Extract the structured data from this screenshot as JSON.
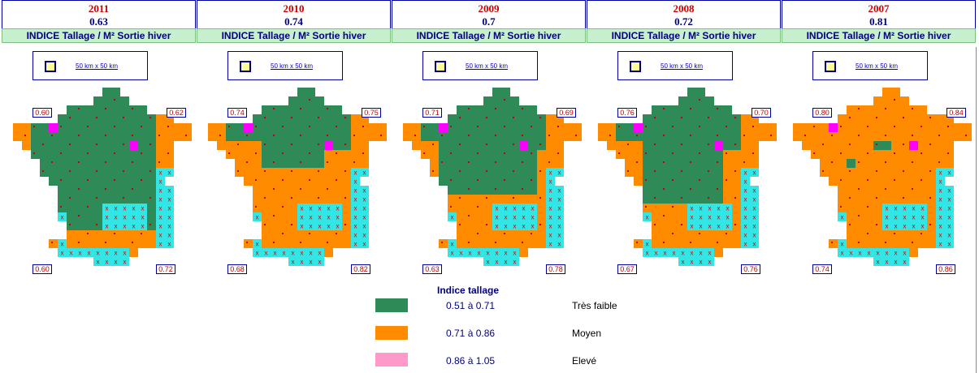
{
  "panels": [
    {
      "year": "2011",
      "mean": "0.63",
      "title": "INDICE Tallage / M² Sortie hiver",
      "scale": "50 km x 50 km",
      "corners": {
        "top_left": "0.60",
        "top_right": "0.62",
        "bottom_left": "0.60",
        "bottom_right": "0.72"
      }
    },
    {
      "year": "2010",
      "mean": "0.74",
      "title": "INDICE Tallage / M² Sortie hiver",
      "scale": "50 km x 50 km",
      "corners": {
        "top_left": "0.74",
        "top_right": "0.75",
        "bottom_left": "0.68",
        "bottom_right": "0.82"
      }
    },
    {
      "year": "2009",
      "mean": "0.7",
      "title": "INDICE Tallage / M² Sortie hiver",
      "scale": "50 km x 50 km",
      "corners": {
        "top_left": "0.71",
        "top_right": "0.69",
        "bottom_left": "0.63",
        "bottom_right": "0.78"
      }
    },
    {
      "year": "2008",
      "mean": "0.72",
      "title": "INDICE Tallage / M² Sortie hiver",
      "scale": "50 km x 50 km",
      "corners": {
        "top_left": "0.76",
        "top_right": "0.70",
        "bottom_left": "0.67",
        "bottom_right": "0.76"
      }
    },
    {
      "year": "2007",
      "mean": "0.81",
      "title": "INDICE Tallage / M² Sortie hiver",
      "scale": "50 km x 50 km",
      "corners": {
        "top_left": "0.80",
        "top_right": "0.84",
        "bottom_left": "0.74",
        "bottom_right": "0.86"
      }
    }
  ],
  "legend": {
    "title": "Indice tallage",
    "items": [
      {
        "color": "#2e8b57",
        "range": "0.51 à 0.71",
        "label": "Très faible"
      },
      {
        "color": "#ff8c00",
        "range": "0.71 à 0.86",
        "label": "Moyen"
      },
      {
        "color": "#ff99cc",
        "range": "0.86 à 1.05",
        "label": "Elevé"
      }
    ]
  },
  "colors": {
    "no_data": "#33e6e6",
    "magenta": "#ff00ff",
    "green": "#2e8b57",
    "orange": "#ff8c00",
    "marker": "#cc0000"
  }
}
